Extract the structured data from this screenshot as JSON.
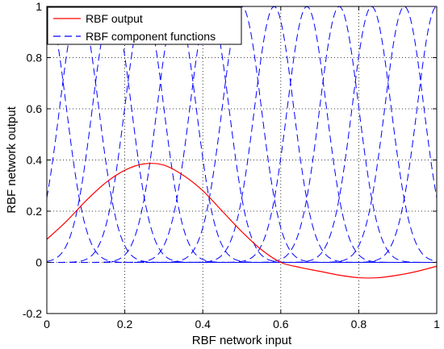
{
  "chart_data": {
    "type": "line",
    "title": "",
    "xlabel": "RBF network input",
    "ylabel": "RBF network output",
    "xlim": [
      0,
      1
    ],
    "ylim": [
      -0.2,
      1
    ],
    "xticks": [
      0,
      0.2,
      0.4,
      0.6,
      0.8,
      1
    ],
    "xtick_labels": [
      "0",
      "0.2",
      "0.4",
      "0.6",
      "0.8",
      "1"
    ],
    "yticks": [
      -0.2,
      0,
      0.2,
      0.4,
      0.6,
      0.8,
      1
    ],
    "ytick_labels": [
      "-0.2",
      "0",
      "0.2",
      "0.4",
      "0.6",
      "0.8",
      "1"
    ],
    "grid": true,
    "grid_style": "dotted",
    "legend_position": "top-left",
    "component_functions": {
      "name": "RBF component functions",
      "color": "#0000ff",
      "style": "dashed",
      "shape": "gaussian",
      "peak": 1,
      "width_sigma": 0.05,
      "centers": [
        0,
        0.083,
        0.167,
        0.25,
        0.333,
        0.417,
        0.5,
        0.583,
        0.667,
        0.75,
        0.833,
        0.917,
        1
      ]
    },
    "series": [
      {
        "name": "RBF output",
        "color": "#ff0000",
        "style": "solid",
        "x": [
          0,
          0.05,
          0.1,
          0.15,
          0.2,
          0.25,
          0.3,
          0.35,
          0.4,
          0.45,
          0.5,
          0.55,
          0.6,
          0.65,
          0.7,
          0.75,
          0.8,
          0.85,
          0.9,
          0.95,
          1
        ],
        "y": [
          0.09,
          0.16,
          0.24,
          0.31,
          0.36,
          0.385,
          0.38,
          0.34,
          0.28,
          0.2,
          0.12,
          0.05,
          0.0,
          -0.02,
          -0.035,
          -0.05,
          -0.06,
          -0.06,
          -0.05,
          -0.035,
          -0.015
        ]
      }
    ]
  }
}
